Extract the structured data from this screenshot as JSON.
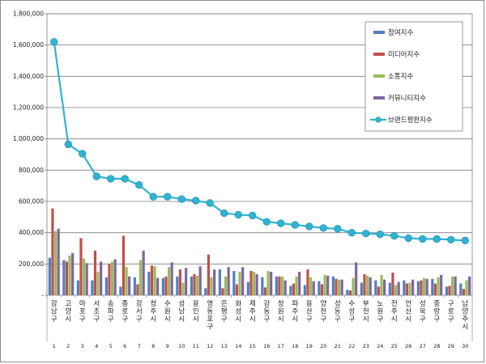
{
  "chart_data": {
    "type": "bar",
    "categories": [
      "강남구",
      "고양시",
      "마포구",
      "서초구",
      "송파구",
      "종로구",
      "강서구",
      "청주시",
      "수원시",
      "성남시",
      "용인시",
      "영등포구",
      "은평구",
      "화성시",
      "제주시",
      "강동구",
      "창원시",
      "파주시",
      "용산구",
      "양천구",
      "성동구",
      "수성구",
      "부천시",
      "노원구",
      "전주시",
      "안산시",
      "성북구",
      "중랑구",
      "구로구",
      "남양주시"
    ],
    "ranks": [
      "1",
      "2",
      "3",
      "4",
      "5",
      "6",
      "7",
      "8",
      "9",
      "10",
      "11",
      "12",
      "13",
      "14",
      "15",
      "16",
      "17",
      "18",
      "19",
      "20",
      "21",
      "22",
      "23",
      "24",
      "25",
      "26",
      "27",
      "28",
      "29",
      "30"
    ],
    "series": [
      {
        "name": "참여지수",
        "color": "#4f81bd",
        "values": [
          240000,
          225000,
          95000,
          95000,
          115000,
          55000,
          115000,
          150000,
          110000,
          120000,
          120000,
          45000,
          165000,
          155000,
          85000,
          115000,
          120000,
          60000,
          65000,
          90000,
          120000,
          35000,
          80000,
          95000,
          80000,
          95000,
          90000,
          105000,
          55000,
          75000
        ]
      },
      {
        "name": "미디어지수",
        "color": "#c0504d",
        "values": [
          555000,
          215000,
          365000,
          285000,
          200000,
          380000,
          70000,
          190000,
          120000,
          165000,
          135000,
          260000,
          45000,
          70000,
          155000,
          50000,
          120000,
          75000,
          165000,
          70000,
          105000,
          30000,
          135000,
          55000,
          145000,
          75000,
          95000,
          75000,
          60000,
          40000
        ]
      },
      {
        "name": "소통지수",
        "color": "#9bbb59",
        "values": [
          410000,
          255000,
          235000,
          150000,
          215000,
          180000,
          225000,
          185000,
          180000,
          80000,
          125000,
          115000,
          120000,
          150000,
          150000,
          155000,
          120000,
          120000,
          115000,
          130000,
          100000,
          110000,
          125000,
          130000,
          65000,
          80000,
          110000,
          115000,
          120000,
          95000
        ]
      },
      {
        "name": "커뮤니티지수",
        "color": "#8064a2",
        "values": [
          425000,
          270000,
          205000,
          215000,
          230000,
          120000,
          285000,
          110000,
          210000,
          175000,
          185000,
          165000,
          180000,
          180000,
          135000,
          150000,
          95000,
          150000,
          90000,
          125000,
          100000,
          210000,
          115000,
          100000,
          85000,
          100000,
          105000,
          130000,
          120000,
          120000
        ]
      }
    ],
    "line": {
      "name": "브랜드평판지수",
      "color": "#31b3d3",
      "values": [
        1620000,
        965000,
        905000,
        760000,
        745000,
        745000,
        705000,
        630000,
        630000,
        615000,
        605000,
        590000,
        525000,
        515000,
        510000,
        470000,
        460000,
        450000,
        440000,
        430000,
        425000,
        400000,
        395000,
        390000,
        380000,
        365000,
        360000,
        360000,
        355000,
        350000
      ]
    },
    "yticks": [
      "-",
      "200,000",
      "400,000",
      "600,000",
      "800,000",
      "1,000,000",
      "1,200,000",
      "1,400,000",
      "1,600,000",
      "1,800,000"
    ],
    "ylim": [
      0,
      1800000
    ],
    "grid": true,
    "legend_position": "top-right"
  }
}
